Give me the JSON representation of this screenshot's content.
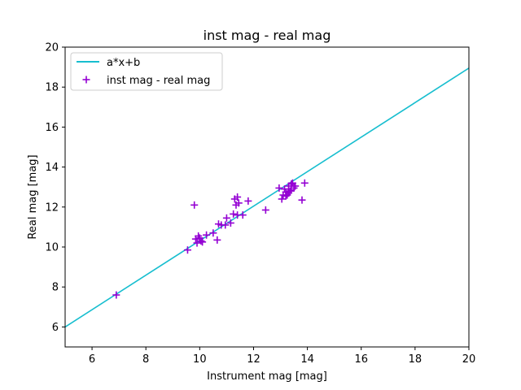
{
  "chart_data": {
    "type": "scatter",
    "title": "inst mag - real mag",
    "xlabel": "Instrument mag [mag]",
    "ylabel": "Real mag [mag]",
    "xlim": [
      5,
      20
    ],
    "ylim": [
      5,
      20
    ],
    "xticks": [
      6,
      8,
      10,
      12,
      14,
      16,
      18,
      20
    ],
    "yticks": [
      6,
      8,
      10,
      12,
      14,
      16,
      18,
      20
    ],
    "grid": false,
    "legend_position": "upper-left",
    "series": [
      {
        "name": "a*x+b",
        "kind": "line",
        "color": "#17becf",
        "x": [
          5,
          20
        ],
        "y": [
          6.0,
          18.95
        ]
      },
      {
        "name": "inst mag - real mag",
        "kind": "scatter",
        "marker": "plus",
        "color": "#9400d3",
        "x": [
          6.9,
          9.55,
          9.8,
          9.85,
          9.9,
          9.95,
          10.0,
          10.05,
          10.1,
          10.25,
          10.5,
          10.65,
          10.7,
          10.8,
          10.95,
          11.0,
          11.15,
          11.25,
          11.3,
          11.35,
          11.4,
          11.4,
          11.45,
          11.6,
          11.8,
          12.45,
          12.95,
          13.05,
          13.1,
          13.15,
          13.2,
          13.2,
          13.25,
          13.3,
          13.3,
          13.35,
          13.4,
          13.4,
          13.45,
          13.5,
          13.55,
          13.8,
          13.9
        ],
        "y": [
          7.6,
          9.85,
          12.1,
          10.4,
          10.2,
          10.55,
          10.45,
          10.3,
          10.25,
          10.6,
          10.7,
          10.35,
          11.15,
          11.1,
          11.1,
          11.45,
          11.2,
          11.65,
          12.4,
          12.1,
          12.5,
          11.6,
          12.2,
          11.6,
          12.3,
          11.85,
          12.95,
          12.4,
          12.6,
          12.9,
          12.55,
          12.75,
          12.6,
          12.7,
          13.05,
          12.8,
          13.15,
          12.85,
          13.2,
          12.95,
          13.05,
          12.35,
          13.2
        ]
      }
    ]
  }
}
